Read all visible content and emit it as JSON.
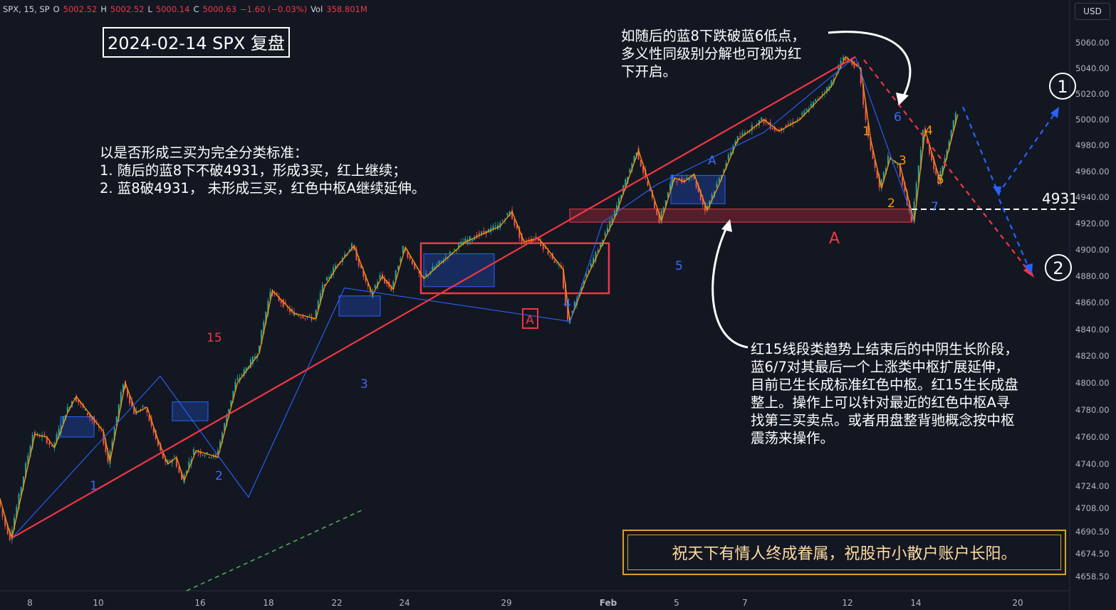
{
  "header": {
    "symbol": "SPX, 15, SP",
    "open_label": "O",
    "open": "5002.52",
    "high_label": "H",
    "high": "5002.52",
    "low_label": "L",
    "low": "5000.14",
    "close_label": "C",
    "close": "5000.63",
    "change": "−1.60 (−0.03%)",
    "vol_label": "Vol",
    "vol": "358.801M"
  },
  "currency": "USD",
  "title": "2024-02-14 SPX 复盘",
  "notes": {
    "top": "如随后的蓝8下跌破蓝6低点，\n多义性同级别分解也可视为红\n下开启。",
    "left": "以是否形成三买为完全分类标准：\n1. 随后的蓝8下不破4931，形成3买，红上继续；\n2. 蓝8破4931， 未形成三买，红色中枢A继续延伸。",
    "right": "红15线段类趋势上结束后的中阴生长阶段，\n蓝6/7对其最后一个上涨类中枢扩展延伸，\n目前已生长成标准红色中枢。红15生长成盘\n整上。操作上可以针对最近的红色中枢A寻\n找第三买卖点。或者用盘整背驰概念按中枢\n震荡来操作。"
  },
  "blessing": "祝天下有情人终成眷属，祝股市小散户账户长阳。",
  "level_4931_label": "4931",
  "colors": {
    "background": "#131722",
    "red": "#f23645",
    "blue": "#2962ff",
    "orange": "#ff9800",
    "white": "#ffffff",
    "green": "#4caf50",
    "gold": "#d7a02c"
  },
  "chart_data": {
    "type": "line",
    "symbol": "SPX",
    "interval": "15",
    "y_axis": {
      "ticks": [
        4658.5,
        4674.5,
        4690.5,
        4708,
        4724,
        4740,
        4760,
        4780,
        4800,
        4820,
        4840,
        4860,
        4880,
        4900,
        4920,
        4940,
        4960,
        4980,
        5000,
        5020,
        5040,
        5060
      ],
      "tick_labels": [
        "4658.50",
        "4674.50",
        "4690.50",
        "4708.00",
        "4724.00",
        "4740.00",
        "4760.00",
        "4780.00",
        "4800.00",
        "4820.00",
        "4840.00",
        "4860.00",
        "4880.00",
        "4900.00",
        "4920.00",
        "4940.00",
        "4960.00",
        "4980.00",
        "5000.00",
        "5020.00",
        "5040.00",
        "5060.00"
      ],
      "ylim": [
        4650,
        5070
      ]
    },
    "x_axis": {
      "tick_labels": [
        "8",
        "10",
        "16",
        "18",
        "22",
        "24",
        "29",
        "Feb",
        "5",
        "7",
        "12",
        "14",
        "20"
      ]
    },
    "series": [
      {
        "color": "#ff9800",
        "points": [
          [
            0.0,
            4715
          ],
          [
            0.7,
            4695
          ],
          [
            1.1,
            4686
          ],
          [
            3.2,
            4762
          ],
          [
            4.3,
            4760
          ],
          [
            5.0,
            4752
          ],
          [
            6.2,
            4778
          ],
          [
            7.0,
            4790
          ],
          [
            9.5,
            4764
          ],
          [
            10.1,
            4742
          ],
          [
            11.5,
            4800
          ],
          [
            12.5,
            4778
          ],
          [
            13.5,
            4782
          ],
          [
            14.5,
            4758
          ],
          [
            15.4,
            4740
          ],
          [
            16.2,
            4745
          ],
          [
            16.9,
            4728
          ],
          [
            18.0,
            4750
          ],
          [
            20.0,
            4745
          ],
          [
            21.8,
            4800
          ],
          [
            23.8,
            4822
          ],
          [
            25.0,
            4869
          ],
          [
            27.0,
            4852
          ],
          [
            29.0,
            4848
          ],
          [
            29.8,
            4872
          ],
          [
            31.0,
            4888
          ],
          [
            32.5,
            4903
          ],
          [
            34.2,
            4866
          ],
          [
            35.1,
            4880
          ],
          [
            36.1,
            4870
          ],
          [
            37.2,
            4902
          ],
          [
            38.9,
            4878
          ],
          [
            40.5,
            4890
          ],
          [
            42.7,
            4906
          ],
          [
            45.9,
            4918
          ],
          [
            47.0,
            4929
          ],
          [
            48.1,
            4906
          ],
          [
            49.4,
            4909
          ],
          [
            50.3,
            4900
          ],
          [
            51.7,
            4885
          ],
          [
            52.3,
            4846
          ],
          [
            53.8,
            4878
          ],
          [
            56.4,
            4924
          ],
          [
            58.6,
            4976
          ],
          [
            60.7,
            4922
          ],
          [
            61.9,
            4955
          ],
          [
            62.8,
            4952
          ],
          [
            63.7,
            4958
          ],
          [
            64.9,
            4930
          ],
          [
            66.0,
            4950
          ],
          [
            67.7,
            4984
          ],
          [
            70.1,
            5000
          ],
          [
            71.5,
            4991
          ],
          [
            73.4,
            5000
          ],
          [
            76.3,
            5026
          ],
          [
            77.6,
            5049
          ],
          [
            79.0,
            5040
          ],
          [
            79.9,
            4985
          ],
          [
            80.9,
            4947
          ],
          [
            81.7,
            4970
          ],
          [
            82.6,
            4965
          ],
          [
            83.9,
            4921
          ],
          [
            84.9,
            4992
          ],
          [
            86.3,
            4952
          ],
          [
            87.9,
            5004
          ]
        ]
      },
      {
        "color": "#2962ff",
        "points": [
          [
            1.1,
            4686
          ],
          [
            14.7,
            4805
          ],
          [
            22.8,
            4716
          ],
          [
            31.6,
            4871
          ],
          [
            52.3,
            4846
          ],
          [
            55.3,
            4921
          ],
          [
            60.3,
            4950
          ],
          [
            70.1,
            4990
          ],
          [
            78.5,
            5049
          ],
          [
            83.9,
            4921
          ]
        ]
      },
      {
        "color": "#f23645",
        "points": [
          [
            1.1,
            4686
          ],
          [
            78.5,
            5049
          ]
        ]
      }
    ],
    "zones": [
      {
        "color": "#2962ff",
        "y": [
          4760,
          4775
        ]
      },
      {
        "color": "#2962ff",
        "y": [
          4772,
          4786
        ]
      },
      {
        "color": "#2962ff",
        "y": [
          4850,
          4865
        ]
      },
      {
        "color": "#2962ff",
        "y": [
          4872,
          4897
        ]
      },
      {
        "color": "#2962ff",
        "y": [
          4935,
          4957
        ]
      },
      {
        "color": "#f23645",
        "y": [
          4867,
          4905
        ]
      },
      {
        "color": "#f23645",
        "y": [
          4921,
          4931
        ]
      }
    ],
    "levels": [
      {
        "value": 4931,
        "label": "4931",
        "style": "dashed",
        "color": "#ffffff"
      }
    ],
    "segment_labels": {
      "blue": [
        "1",
        "2",
        "3",
        "4",
        "5",
        "A",
        "6",
        "7"
      ],
      "orange": [
        "1",
        "2",
        "3",
        "4",
        "5"
      ],
      "red": [
        "15",
        "A",
        "A"
      ],
      "circled": [
        "1",
        "2"
      ]
    }
  }
}
